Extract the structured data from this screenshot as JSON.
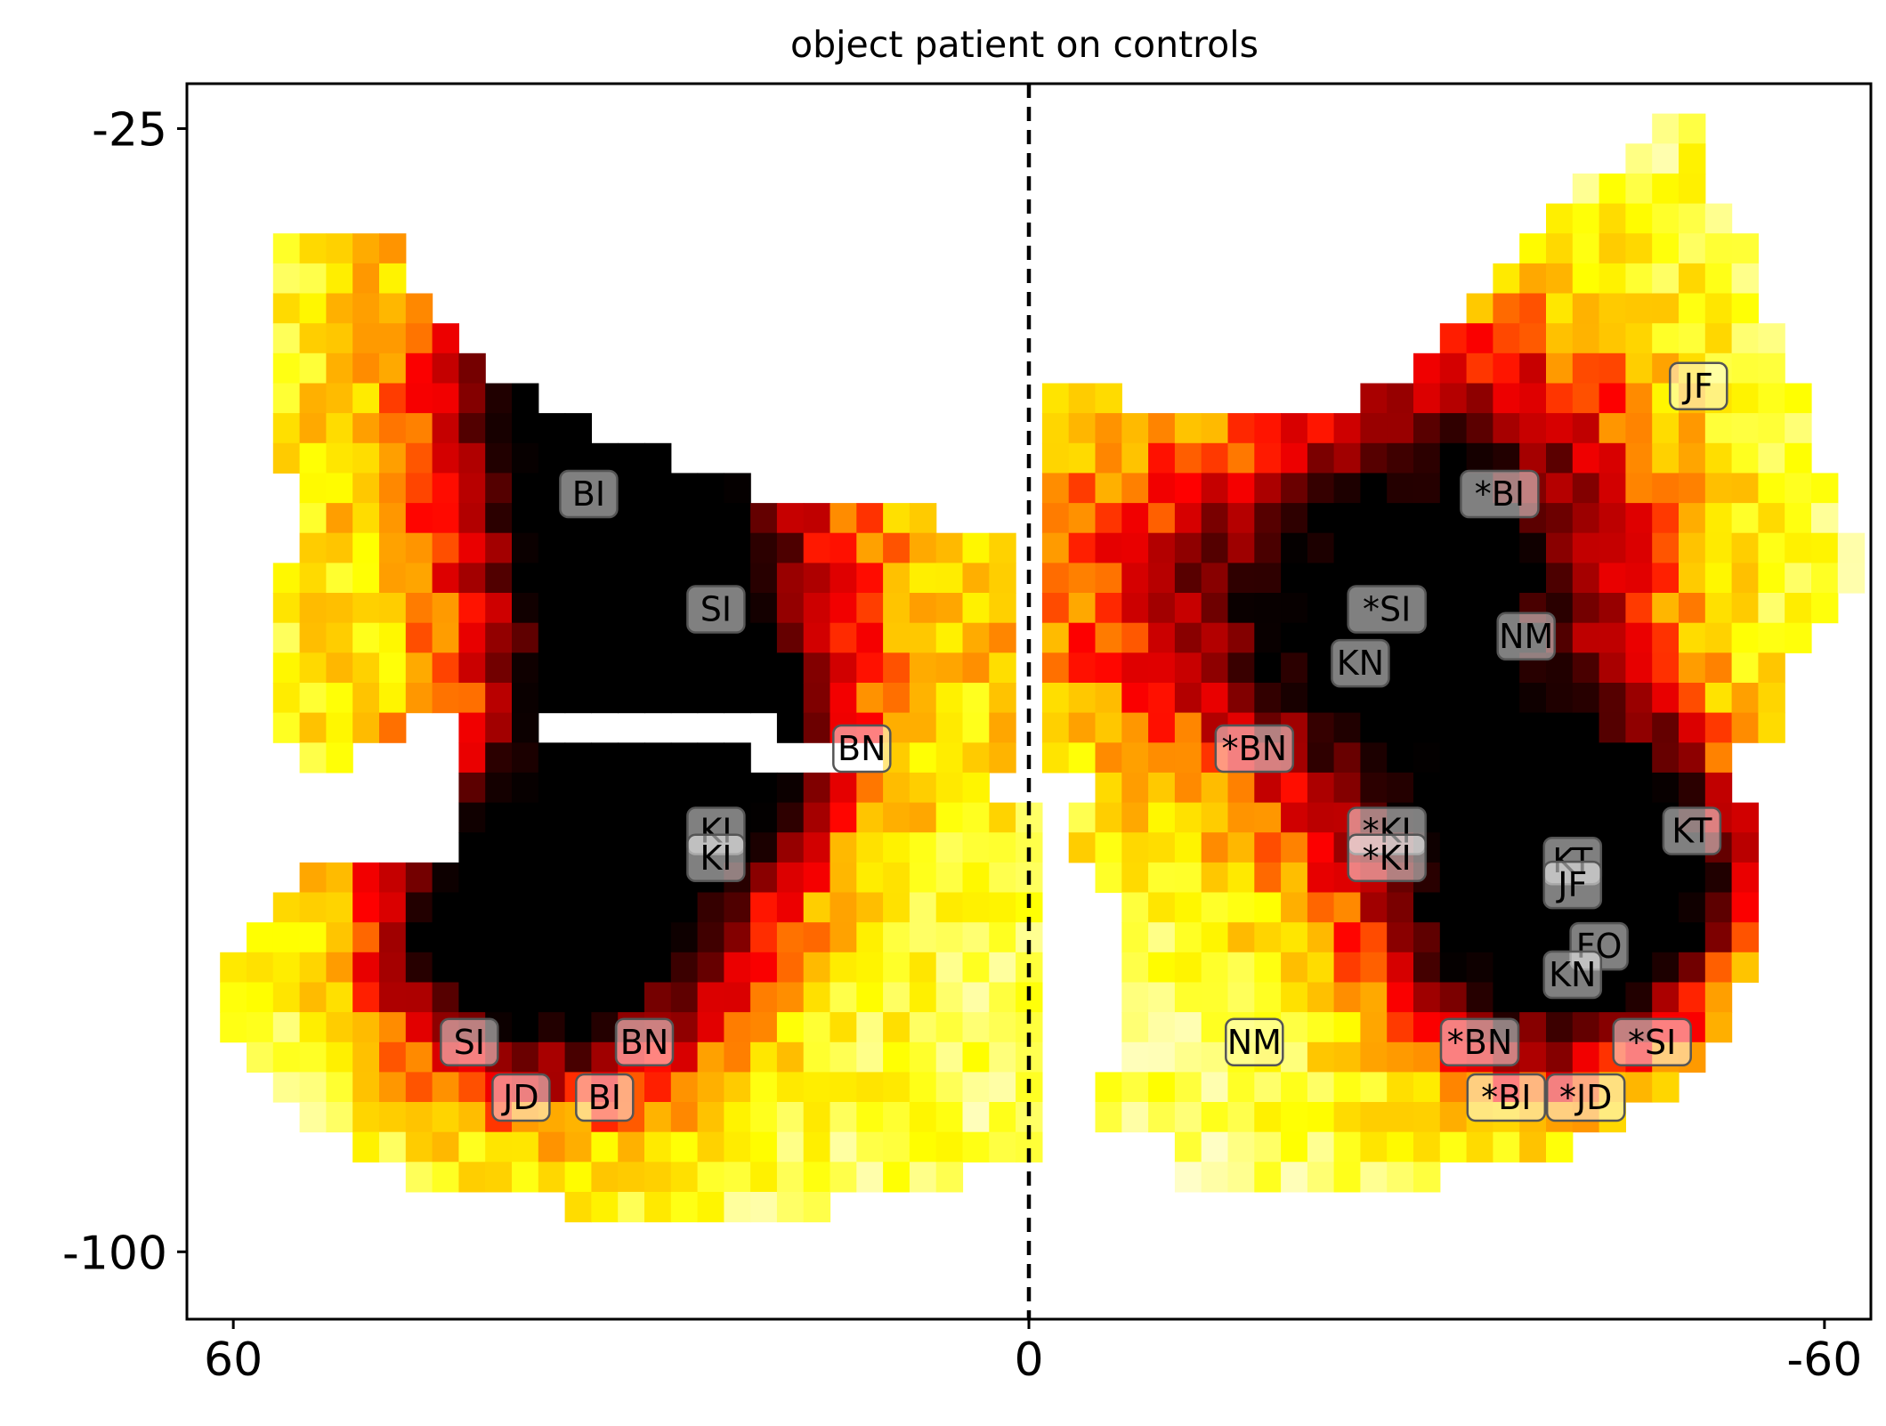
{
  "chart_data": {
    "type": "heatmap",
    "title": "object patient on controls",
    "xlabel": "",
    "ylabel": "",
    "xlim": [
      63.5,
      -63.5
    ],
    "ylim": [
      -104.5,
      -22
    ],
    "x_ticks": [
      60,
      0,
      -60
    ],
    "x_tick_labels": [
      "60",
      "0",
      "-60"
    ],
    "y_ticks": [
      -25,
      -100
    ],
    "y_tick_labels": [
      "-25",
      "-100"
    ],
    "colormap": "hot_r",
    "colormap_stops": [
      "#fffee0",
      "#ffff66",
      "#ffff00",
      "#ffc000",
      "#ff8000",
      "#ff0000",
      "#c00000",
      "#800000",
      "#300000",
      "#000000"
    ],
    "reference_line": {
      "x": 0,
      "style": "dashed",
      "color": "#000000"
    },
    "grid": false,
    "legend": "none",
    "cell_size": 2,
    "heatmap_regions": [
      {
        "name": "left-upper-lobe",
        "points": [
          [
            56.5,
            -31
          ],
          [
            49,
            -31
          ],
          [
            45.3,
            -37
          ],
          [
            42,
            -40
          ],
          [
            35,
            -44
          ],
          [
            22,
            -49
          ],
          [
            8,
            -51
          ],
          [
            1,
            -53
          ],
          [
            1,
            -67
          ],
          [
            12,
            -67
          ],
          [
            22,
            -64
          ],
          [
            32,
            -64
          ],
          [
            47,
            -65
          ],
          [
            49,
            -66
          ],
          [
            54,
            -68
          ],
          [
            58,
            -63
          ],
          [
            55,
            -49
          ],
          [
            58,
            -46
          ],
          [
            57,
            -38
          ],
          [
            56.5,
            -35
          ]
        ]
      },
      {
        "name": "left-lower-lobe",
        "points": [
          [
            43,
            -64
          ],
          [
            44,
            -73
          ],
          [
            53,
            -73
          ],
          [
            59,
            -79
          ],
          [
            61,
            -82
          ],
          [
            60,
            -87
          ],
          [
            56,
            -91
          ],
          [
            52,
            -92
          ],
          [
            47,
            -95
          ],
          [
            40,
            -95
          ],
          [
            34,
            -98
          ],
          [
            22,
            -98
          ],
          [
            9,
            -96
          ],
          [
            0,
            -93
          ],
          [
            0,
            -70
          ],
          [
            8,
            -67
          ],
          [
            22,
            -67
          ],
          [
            32,
            -66
          ]
        ]
      },
      {
        "name": "right-upper-lobe",
        "points": [
          [
            -1,
            -41
          ],
          [
            -10,
            -44
          ],
          [
            -22,
            -44
          ],
          [
            -30,
            -40
          ],
          [
            -37,
            -33
          ],
          [
            -43,
            -28
          ],
          [
            -49,
            -24
          ],
          [
            -50,
            -24
          ],
          [
            -50,
            -29
          ],
          [
            -54,
            -33
          ],
          [
            -58,
            -42
          ],
          [
            -59,
            -46
          ],
          [
            -61,
            -50
          ],
          [
            -63,
            -55
          ],
          [
            -58,
            -59
          ],
          [
            -56,
            -66
          ],
          [
            -48,
            -69
          ],
          [
            -36,
            -70
          ],
          [
            -22,
            -68
          ],
          [
            -8,
            -68
          ],
          [
            -1,
            -68
          ]
        ]
      },
      {
        "name": "right-lower-lobe",
        "points": [
          [
            -1,
            -70
          ],
          [
            -10,
            -67
          ],
          [
            -20,
            -67
          ],
          [
            -32,
            -68
          ],
          [
            -44,
            -68
          ],
          [
            -52,
            -68
          ],
          [
            -55,
            -72
          ],
          [
            -55,
            -78
          ],
          [
            -53,
            -85
          ],
          [
            -48,
            -90
          ],
          [
            -40,
            -93
          ],
          [
            -30,
            -95
          ],
          [
            -20,
            -96
          ],
          [
            -12,
            -96
          ],
          [
            -10,
            -93
          ],
          [
            -5,
            -91
          ],
          [
            -8,
            -80
          ],
          [
            -3,
            -72
          ]
        ]
      }
    ],
    "heatmap_peaks": [
      {
        "x": 27,
        "y": -47,
        "intensity": 0.28,
        "spread": 20
      },
      {
        "x": 33,
        "y": -42,
        "intensity": 0.5,
        "spread": 9
      },
      {
        "x": 30,
        "y": -51,
        "intensity": 0.55,
        "spread": 8
      },
      {
        "x": 28,
        "y": -62,
        "intensity": 0.55,
        "spread": 7
      },
      {
        "x": 27,
        "y": -67,
        "intensity": 0.75,
        "spread": 6
      },
      {
        "x": 40,
        "y": -78,
        "intensity": 1.0,
        "spread": 7
      },
      {
        "x": 30,
        "y": -80,
        "intensity": 0.55,
        "spread": 8
      },
      {
        "x": 20,
        "y": -65,
        "intensity": 0.25,
        "spread": 7
      },
      {
        "x": -25,
        "y": -58,
        "intensity": 0.55,
        "spread": 9
      },
      {
        "x": -35,
        "y": -49,
        "intensity": 0.5,
        "spread": 10
      },
      {
        "x": -32,
        "y": -64,
        "intensity": 0.35,
        "spread": 12
      },
      {
        "x": -38,
        "y": -78,
        "intensity": 0.85,
        "spread": 8
      },
      {
        "x": -45,
        "y": -74,
        "intensity": 0.95,
        "spread": 6
      },
      {
        "x": -10,
        "y": -56,
        "intensity": 0.3,
        "spread": 8
      }
    ],
    "annotations": [
      {
        "text": "BI",
        "x": 33.2,
        "y": -49.4
      },
      {
        "text": "SI",
        "x": 23.6,
        "y": -57.1
      },
      {
        "text": "BN",
        "x": 12.6,
        "y": -66.4
      },
      {
        "text": "KI",
        "x": 23.6,
        "y": -71.9
      },
      {
        "text": "KI",
        "x": 23.6,
        "y": -73.7
      },
      {
        "text": "SI",
        "x": 42.2,
        "y": -86.0
      },
      {
        "text": "BN",
        "x": 29.0,
        "y": -86.0
      },
      {
        "text": "JD",
        "x": 38.3,
        "y": -89.7
      },
      {
        "text": "BI",
        "x": 32.0,
        "y": -89.7
      },
      {
        "text": "*BI",
        "x": -35.5,
        "y": -49.4
      },
      {
        "text": "*SI",
        "x": -27.0,
        "y": -57.1
      },
      {
        "text": "NM",
        "x": -37.5,
        "y": -58.9
      },
      {
        "text": "KN",
        "x": -25.0,
        "y": -60.7
      },
      {
        "text": "*BN",
        "x": -17.0,
        "y": -66.4
      },
      {
        "text": "*KI",
        "x": -27.0,
        "y": -71.9
      },
      {
        "text": "*KI",
        "x": -27.0,
        "y": -73.7
      },
      {
        "text": "KT",
        "x": -50.0,
        "y": -71.9
      },
      {
        "text": "KT",
        "x": -41.0,
        "y": -73.9
      },
      {
        "text": "JF",
        "x": -41.0,
        "y": -75.5
      },
      {
        "text": "FO",
        "x": -43.0,
        "y": -79.6
      },
      {
        "text": "KN",
        "x": -41.0,
        "y": -81.5
      },
      {
        "text": "JF",
        "x": -50.5,
        "y": -42.2
      },
      {
        "text": "NM",
        "x": -17.0,
        "y": -86.0
      },
      {
        "text": "*BN",
        "x": -34.0,
        "y": -86.0
      },
      {
        "text": "*SI",
        "x": -47.0,
        "y": -86.0
      },
      {
        "text": "*BI",
        "x": -36.0,
        "y": -89.7
      },
      {
        "text": "*JD",
        "x": -42.0,
        "y": -89.7
      }
    ],
    "annotation_bbox": {
      "facecolor": "#ffffff",
      "alpha": 0.5,
      "edgecolor": "#555555"
    }
  }
}
